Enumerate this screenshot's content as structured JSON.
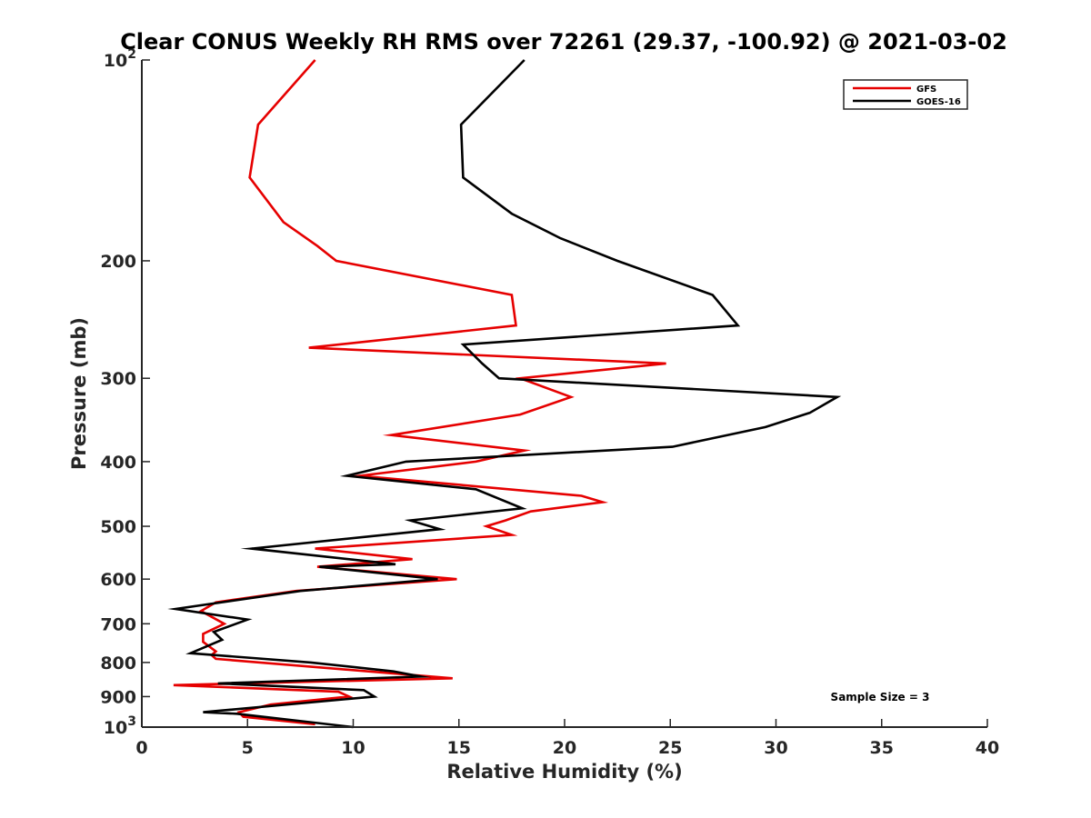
{
  "chart_data": {
    "type": "line",
    "title": "Clear CONUS Weekly RH RMS over 72261 (29.37, -100.92) @ 2021-03-02",
    "xlabel": "Relative Humidity (%)",
    "ylabel": "Pressure (mb)",
    "xlim": [
      0,
      40
    ],
    "ylim": [
      100,
      1000
    ],
    "y_scale": "log",
    "y_reversed": true,
    "x_ticks": [
      0,
      5,
      10,
      15,
      20,
      25,
      30,
      35,
      40
    ],
    "x_tick_labels": [
      "0",
      "5",
      "10",
      "15",
      "20",
      "25",
      "30",
      "35",
      "40"
    ],
    "y_ticks": [
      100,
      200,
      300,
      400,
      500,
      600,
      700,
      800,
      900,
      1000
    ],
    "y_tick_labels": [
      {
        "base": "10",
        "exp": "2"
      },
      {
        "base": "200",
        "exp": ""
      },
      {
        "base": "300",
        "exp": ""
      },
      {
        "base": "400",
        "exp": ""
      },
      {
        "base": "500",
        "exp": ""
      },
      {
        "base": "600",
        "exp": ""
      },
      {
        "base": "700",
        "exp": ""
      },
      {
        "base": "800",
        "exp": ""
      },
      {
        "base": "900",
        "exp": ""
      },
      {
        "base": "10",
        "exp": "3"
      }
    ],
    "grid": false,
    "legend_position": "top-right",
    "annotation": "Sample Size = 3",
    "series": [
      {
        "name": "GFS",
        "color": "#e60000",
        "points": [
          [
            8.2,
            100
          ],
          [
            5.5,
            125
          ],
          [
            5.1,
            150
          ],
          [
            6.7,
            175
          ],
          [
            8.3,
            190
          ],
          [
            9.2,
            200
          ],
          [
            17.5,
            225
          ],
          [
            17.7,
            250
          ],
          [
            7.9,
            270
          ],
          [
            24.8,
            285
          ],
          [
            17.9,
            300
          ],
          [
            20.3,
            320
          ],
          [
            17.9,
            340
          ],
          [
            11.8,
            365
          ],
          [
            18.1,
            385
          ],
          [
            15.8,
            400
          ],
          [
            10.3,
            420
          ],
          [
            20.8,
            450
          ],
          [
            21.8,
            460
          ],
          [
            18.4,
            475
          ],
          [
            17.2,
            490
          ],
          [
            16.3,
            500
          ],
          [
            17.5,
            515
          ],
          [
            8.2,
            540
          ],
          [
            12.8,
            560
          ],
          [
            8.3,
            575
          ],
          [
            14.9,
            600
          ],
          [
            7.3,
            625
          ],
          [
            3.5,
            650
          ],
          [
            2.8,
            670
          ],
          [
            3.9,
            700
          ],
          [
            2.9,
            725
          ],
          [
            2.9,
            745
          ],
          [
            3.5,
            770
          ],
          [
            3.3,
            780
          ],
          [
            3.5,
            790
          ],
          [
            14.7,
            845
          ],
          [
            1.5,
            865
          ],
          [
            9.3,
            885
          ],
          [
            9.8,
            900
          ],
          [
            6.1,
            925
          ],
          [
            4.6,
            950
          ],
          [
            4.8,
            965
          ],
          [
            8.2,
            990
          ]
        ]
      },
      {
        "name": "GOES-16",
        "color": "#000000",
        "points": [
          [
            18.1,
            100
          ],
          [
            15.1,
            125
          ],
          [
            15.2,
            150
          ],
          [
            17.5,
            170
          ],
          [
            19.8,
            185
          ],
          [
            22.5,
            200
          ],
          [
            27.0,
            225
          ],
          [
            28.2,
            250
          ],
          [
            15.2,
            267
          ],
          [
            16.1,
            285
          ],
          [
            16.9,
            300
          ],
          [
            32.9,
            320
          ],
          [
            31.6,
            338
          ],
          [
            29.5,
            355
          ],
          [
            25.1,
            380
          ],
          [
            12.5,
            400
          ],
          [
            9.7,
            420
          ],
          [
            15.8,
            440
          ],
          [
            18.0,
            470
          ],
          [
            12.7,
            490
          ],
          [
            14.1,
            505
          ],
          [
            5.2,
            540
          ],
          [
            12.0,
            570
          ],
          [
            8.4,
            575
          ],
          [
            14.0,
            600
          ],
          [
            7.5,
            625
          ],
          [
            1.6,
            665
          ],
          [
            5.0,
            690
          ],
          [
            3.4,
            720
          ],
          [
            3.8,
            740
          ],
          [
            2.3,
            775
          ],
          [
            8.0,
            800
          ],
          [
            11.9,
            825
          ],
          [
            13.2,
            840
          ],
          [
            3.6,
            860
          ],
          [
            10.5,
            880
          ],
          [
            11.0,
            900
          ],
          [
            2.9,
            950
          ],
          [
            4.5,
            955
          ],
          [
            10.0,
            1000
          ]
        ]
      }
    ]
  }
}
